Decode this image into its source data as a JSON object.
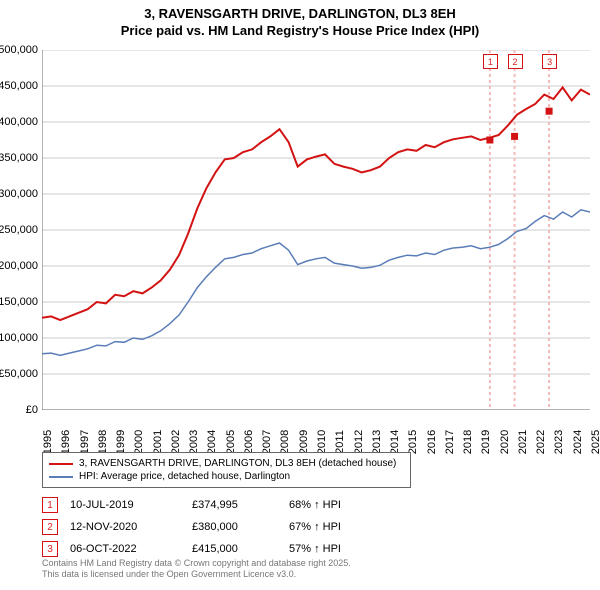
{
  "title": {
    "line1": "3, RAVENSGARTH DRIVE, DARLINGTON, DL3 8EH",
    "line2": "Price paid vs. HM Land Registry's House Price Index (HPI)",
    "fontsize": 13
  },
  "chart": {
    "type": "line",
    "background_color": "#ffffff",
    "grid_color": "#cccccc",
    "axis_color": "#666666",
    "ylim": [
      0,
      500000
    ],
    "ytick_step": 50000,
    "xlim": [
      1995,
      2025
    ],
    "xtick_step": 1,
    "x_ticks": [
      1995,
      1996,
      1997,
      1998,
      1999,
      2000,
      2001,
      2002,
      2003,
      2004,
      2005,
      2006,
      2007,
      2008,
      2009,
      2010,
      2011,
      2012,
      2013,
      2014,
      2015,
      2016,
      2017,
      2018,
      2019,
      2020,
      2021,
      2022,
      2023,
      2024,
      2025
    ],
    "y_ticks": [
      0,
      50000,
      100000,
      150000,
      200000,
      250000,
      300000,
      350000,
      400000,
      450000,
      500000
    ],
    "y_tick_labels": [
      "£0",
      "£50,000",
      "£100,000",
      "£150,000",
      "£200,000",
      "£250,000",
      "£300,000",
      "£350,000",
      "£400,000",
      "£450,000",
      "£500,000"
    ],
    "series": [
      {
        "name": "3, RAVENSGARTH DRIVE, DARLINGTON, DL3 8EH (detached house)",
        "color": "#d31313",
        "line_width": 2,
        "x": [
          1995,
          1995.5,
          1996,
          1996.5,
          1997,
          1997.5,
          1998,
          1998.5,
          1999,
          1999.5,
          2000,
          2000.5,
          2001,
          2001.5,
          2002,
          2002.5,
          2003,
          2003.5,
          2004,
          2004.5,
          2005,
          2005.5,
          2006,
          2006.5,
          2007,
          2007.5,
          2008,
          2008.5,
          2009,
          2009.5,
          2010,
          2010.5,
          2011,
          2011.5,
          2012,
          2012.5,
          2013,
          2013.5,
          2014,
          2014.5,
          2015,
          2015.5,
          2016,
          2016.5,
          2017,
          2017.5,
          2018,
          2018.5,
          2019,
          2019.5,
          2020,
          2020.5,
          2021,
          2021.5,
          2022,
          2022.5,
          2023,
          2023.5,
          2024,
          2024.5,
          2025
        ],
        "y": [
          128000,
          130000,
          125000,
          130000,
          135000,
          140000,
          150000,
          148000,
          160000,
          158000,
          165000,
          162000,
          170000,
          180000,
          195000,
          215000,
          245000,
          280000,
          308000,
          330000,
          348000,
          350000,
          358000,
          362000,
          372000,
          380000,
          390000,
          372000,
          338000,
          348000,
          352000,
          355000,
          342000,
          338000,
          335000,
          330000,
          333000,
          338000,
          350000,
          358000,
          362000,
          360000,
          368000,
          365000,
          372000,
          376000,
          378000,
          380000,
          374995,
          378000,
          382000,
          395000,
          410000,
          418000,
          425000,
          438000,
          432000,
          448000,
          430000,
          445000,
          438000
        ]
      },
      {
        "name": "HPI: Average price, detached house, Darlington",
        "color": "#5a7db8",
        "line_width": 1.5,
        "x": [
          1995,
          1995.5,
          1996,
          1996.5,
          1997,
          1997.5,
          1998,
          1998.5,
          1999,
          1999.5,
          2000,
          2000.5,
          2001,
          2001.5,
          2002,
          2002.5,
          2003,
          2003.5,
          2004,
          2004.5,
          2005,
          2005.5,
          2006,
          2006.5,
          2007,
          2007.5,
          2008,
          2008.5,
          2009,
          2009.5,
          2010,
          2010.5,
          2011,
          2011.5,
          2012,
          2012.5,
          2013,
          2013.5,
          2014,
          2014.5,
          2015,
          2015.5,
          2016,
          2016.5,
          2017,
          2017.5,
          2018,
          2018.5,
          2019,
          2019.5,
          2020,
          2020.5,
          2021,
          2021.5,
          2022,
          2022.5,
          2023,
          2023.5,
          2024,
          2024.5,
          2025
        ],
        "y": [
          78000,
          79000,
          76000,
          79000,
          82000,
          85000,
          90000,
          89000,
          95000,
          94000,
          100000,
          98000,
          103000,
          110000,
          120000,
          132000,
          150000,
          170000,
          185000,
          198000,
          210000,
          212000,
          216000,
          218000,
          224000,
          228000,
          232000,
          222000,
          202000,
          207000,
          210000,
          212000,
          204000,
          202000,
          200000,
          197000,
          198000,
          201000,
          208000,
          212000,
          215000,
          214000,
          218000,
          216000,
          222000,
          225000,
          226000,
          228000,
          224000,
          226000,
          230000,
          238000,
          248000,
          252000,
          262000,
          270000,
          265000,
          275000,
          268000,
          278000,
          275000
        ]
      }
    ],
    "sale_markers": [
      {
        "n": "1",
        "x": 2019.52,
        "y": 374995,
        "vline_color": "#f4b9b9"
      },
      {
        "n": "2",
        "x": 2020.87,
        "y": 380000,
        "vline_color": "#f4b9b9"
      },
      {
        "n": "3",
        "x": 2022.76,
        "y": 415000,
        "vline_color": "#f4b9b9"
      }
    ],
    "marker_line_color": "#f4b9b9",
    "marker_box_border": "#d31313"
  },
  "legend": {
    "items": [
      {
        "color": "#d31313",
        "label": "3, RAVENSGARTH DRIVE, DARLINGTON, DL3 8EH (detached house)"
      },
      {
        "color": "#5a7db8",
        "label": "HPI: Average price, detached house, Darlington"
      }
    ]
  },
  "sales": [
    {
      "n": "1",
      "date": "10-JUL-2019",
      "price": "£374,995",
      "pct": "68% ↑ HPI"
    },
    {
      "n": "2",
      "date": "12-NOV-2020",
      "price": "£380,000",
      "pct": "67% ↑ HPI"
    },
    {
      "n": "3",
      "date": "06-OCT-2022",
      "price": "£415,000",
      "pct": "57% ↑ HPI"
    }
  ],
  "footer": {
    "line1": "Contains HM Land Registry data © Crown copyright and database right 2025.",
    "line2": "This data is licensed under the Open Government Licence v3.0."
  }
}
